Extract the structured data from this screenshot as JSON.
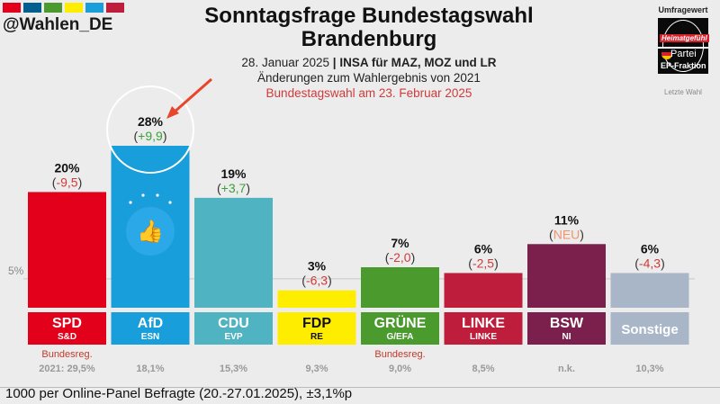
{
  "header": {
    "handle": "@Wahlen_DE",
    "palette_colors": [
      "#e3001b",
      "#005f8e",
      "#4a9a2e",
      "#ffed00",
      "#189edb",
      "#be1e3c"
    ],
    "title_line1": "Sonntagsfrage Bundestagswahl",
    "title_line2": "Brandenburg",
    "date": "28. Januar 2025",
    "separator": "|",
    "institute": "INSA für MAZ, MOZ und LR",
    "changes_note": "Änderungen zum Wahlergebnis von 2021",
    "election_note": "Bundestagswahl am 23. Februar 2025"
  },
  "legend": {
    "top_label": "Umfragewert",
    "logo_text": "Heimatgefühl",
    "party_label": "Partei",
    "ep_label": "EP-Fraktion",
    "bottom_label": "Letzte Wahl"
  },
  "footer": {
    "note": "1000 per Online-Panel Befragte (20.-27.01.2025), ±3,1%p"
  },
  "chart_data": {
    "type": "bar",
    "title": "Sonntagsfrage Bundestagswahl Brandenburg",
    "categories": [
      "SPD",
      "AfD",
      "CDU",
      "FDP",
      "GRÜNE",
      "LINKE",
      "BSW",
      "Sonstige"
    ],
    "ep_groups": [
      "S&D",
      "ESN",
      "EVP",
      "RE",
      "G/EFA",
      "LINKE",
      "NI",
      ""
    ],
    "values": [
      20,
      28,
      19,
      3,
      7,
      6,
      11,
      6
    ],
    "value_labels": [
      "20%",
      "28%",
      "19%",
      "3%",
      "7%",
      "6%",
      "11%",
      "6%"
    ],
    "changes": [
      "-9,5",
      "+9,9",
      "+3,7",
      "-6,3",
      "-2,0",
      "-2,5",
      "NEU",
      "-4,3"
    ],
    "previous_election": [
      "2021: 29,5%",
      "18,1%",
      "15,3%",
      "9,3%",
      "9,0%",
      "8,5%",
      "n.k.",
      "10,3%"
    ],
    "government_note": [
      "Bundesreg.",
      "",
      "",
      "",
      "Bundesreg.",
      "",
      "",
      ""
    ],
    "colors": [
      "#e3001b",
      "#189edb",
      "#4fb3c1",
      "#ffed00",
      "#4a9a2e",
      "#be1e3c",
      "#7b1f4d",
      "#a9b6c8"
    ],
    "label_text_colors": [
      "#ffffff",
      "#ffffff",
      "#ffffff",
      "#111111",
      "#ffffff",
      "#ffffff",
      "#ffffff",
      "#ffffff"
    ],
    "threshold": 5,
    "threshold_label": "5%",
    "ylim": [
      0,
      30
    ],
    "highlight": "AfD",
    "xlabel": "",
    "ylabel": ""
  }
}
